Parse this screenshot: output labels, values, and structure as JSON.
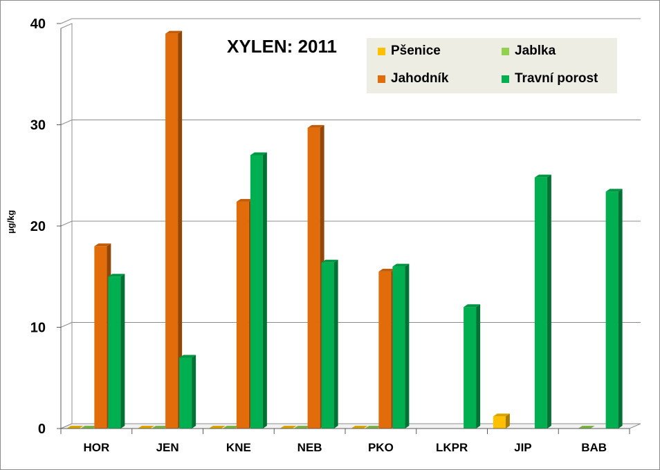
{
  "chart_data": {
    "type": "bar",
    "title": "XYLEN: 2011",
    "xlabel": "",
    "ylabel": "µg/kg",
    "ylim": [
      0,
      40
    ],
    "yticks": [
      0,
      10,
      20,
      30,
      40
    ],
    "grid": true,
    "legend_position": "top-right",
    "categories": [
      "HOR",
      "JEN",
      "KNE",
      "NEB",
      "PKO",
      "LKPR",
      "JIP",
      "BAB"
    ],
    "series": [
      {
        "name": "Pšenice",
        "color": "#ffc000",
        "values": [
          0,
          0,
          0,
          0,
          0,
          null,
          1.2,
          null
        ]
      },
      {
        "name": "Jablka",
        "color": "#92d050",
        "values": [
          0,
          0,
          0,
          0,
          0,
          null,
          null,
          0
        ]
      },
      {
        "name": "Jahodník",
        "color": "#e36c0a",
        "values": [
          18,
          39,
          22.4,
          29.7,
          15.5,
          null,
          null,
          null
        ]
      },
      {
        "name": "Travní porost",
        "color": "#00b050",
        "values": [
          15,
          7,
          27,
          16.4,
          16,
          12,
          24.8,
          23.4
        ]
      }
    ]
  }
}
